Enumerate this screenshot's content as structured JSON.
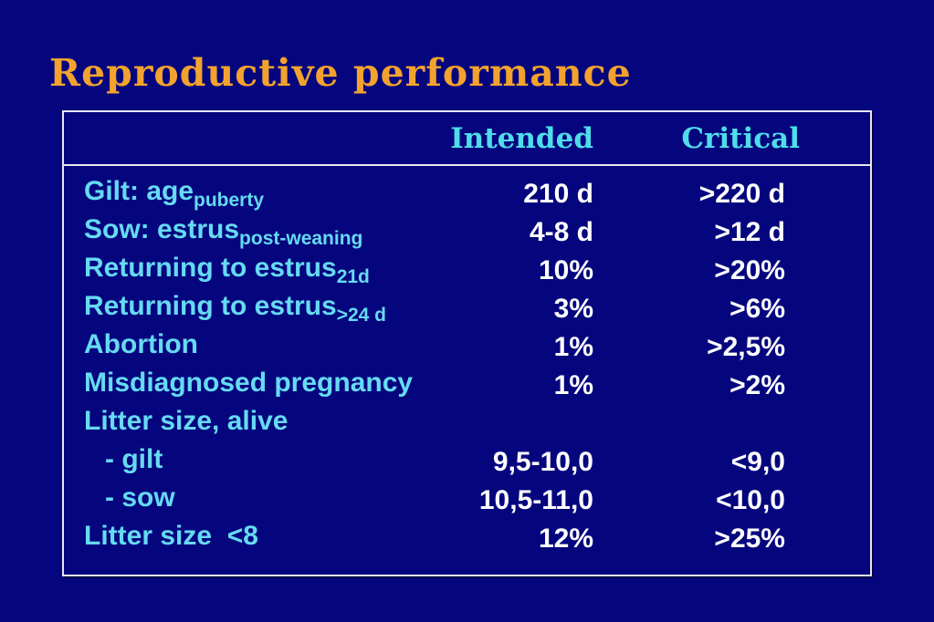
{
  "slide": {
    "title": "Reproductive performance",
    "colors": {
      "background": "#05057E",
      "title_orange": "#F2A22E",
      "header_cyan": "#4EDDE9",
      "label_cyan": "#66DAF2",
      "value_white": "#FFFFFF",
      "table_border": "#E6E6F0"
    }
  },
  "table": {
    "headers": {
      "intended": "Intended",
      "critical": "Critical"
    },
    "rows": [
      {
        "label": "Gilt: age",
        "sub": "puberty",
        "intended": "210 d",
        "critical": ">220 d",
        "indent": false
      },
      {
        "label": "Sow: estrus",
        "sub": "post-weaning",
        "intended": "4-8 d",
        "critical": ">12 d",
        "indent": false
      },
      {
        "label": "Returning to estrus",
        "sub": "21d",
        "intended": "10%",
        "critical": ">20%",
        "indent": false
      },
      {
        "label": "Returning to estrus",
        "sub": ">24 d",
        "intended": "3%",
        "critical": ">6%",
        "indent": false
      },
      {
        "label": "Abortion",
        "sub": "",
        "intended": "1%",
        "critical": ">2,5%",
        "indent": false
      },
      {
        "label": "Misdiagnosed pregnancy",
        "sub": "",
        "intended": "1%",
        "critical": ">2%",
        "indent": false
      },
      {
        "label": "Litter size, alive",
        "sub": "",
        "intended": "",
        "critical": "",
        "indent": false
      },
      {
        "label": "- gilt",
        "sub": "",
        "intended": "9,5-10,0",
        "critical": "<9,0",
        "indent": true
      },
      {
        "label": "- sow",
        "sub": "",
        "intended": "10,5-11,0",
        "critical": "<10,0",
        "indent": true
      },
      {
        "label": "Litter size  <8",
        "sub": "",
        "intended": "12%",
        "critical": ">25%",
        "indent": false
      }
    ]
  }
}
